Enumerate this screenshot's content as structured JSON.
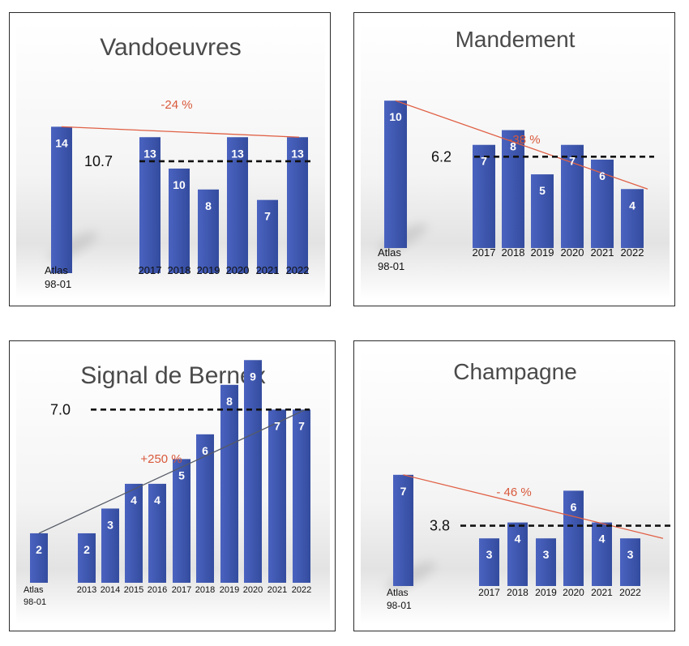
{
  "colors": {
    "bar": "#4a63c0",
    "bar_dark": "#344c9e",
    "trend_down": "#e06045",
    "trend_up": "#555a66",
    "avg": "#111111"
  },
  "chart_data": [
    {
      "type": "bar",
      "title": "Vandoeuvres",
      "categories": [
        "Atlas\n98-01",
        "2017",
        "2018",
        "2019",
        "2020",
        "2021",
        "2022"
      ],
      "values": [
        14,
        13,
        10,
        8,
        13,
        7,
        13
      ],
      "data_labels": [
        "14",
        "13",
        "10",
        "8",
        "13",
        "7",
        "13"
      ],
      "average": {
        "value": 10.7,
        "label": "10.7"
      },
      "change": {
        "label": "-24 %",
        "direction": "down"
      },
      "ylim": [
        0,
        15.5
      ]
    },
    {
      "type": "bar",
      "title": "Mandement",
      "categories": [
        "Atlas\n98-01",
        "2017",
        "2018",
        "2019",
        "2020",
        "2021",
        "2022"
      ],
      "values": [
        10,
        7,
        8,
        5,
        7,
        6,
        4
      ],
      "data_labels": [
        "10",
        "7",
        "8",
        "5",
        "7",
        "6",
        "4"
      ],
      "average": {
        "value": 6.2,
        "label": "6.2"
      },
      "change": {
        "label": "-38 %",
        "direction": "down"
      },
      "ylim": [
        0,
        11
      ]
    },
    {
      "type": "bar",
      "title": "Signal de Bernex",
      "categories": [
        "Atlas\n98-01",
        "2013",
        "2014",
        "2015",
        "2016",
        "2017",
        "2018",
        "2019",
        "2020",
        "2021",
        "2022"
      ],
      "values": [
        2,
        2,
        3,
        4,
        4,
        5,
        6,
        8,
        9,
        7,
        7
      ],
      "data_labels": [
        "2",
        "2",
        "3",
        "4",
        "4",
        "5",
        "6",
        "8",
        "9",
        "7",
        "7"
      ],
      "average": {
        "value": 7.0,
        "label": "7.0"
      },
      "change": {
        "label": "+250 %",
        "direction": "up"
      },
      "ylim": [
        0,
        9.5
      ]
    },
    {
      "type": "bar",
      "title": "Champagne",
      "categories": [
        "Atlas\n98-01",
        "2017",
        "2018",
        "2019",
        "2020",
        "2021",
        "2022"
      ],
      "values": [
        7,
        3,
        4,
        3,
        6,
        4,
        3
      ],
      "data_labels": [
        "7",
        "3",
        "4",
        "3",
        "6",
        "4",
        "3"
      ],
      "average": {
        "value": 3.8,
        "label": "3.8"
      },
      "change": {
        "label": "- 46 %",
        "direction": "down"
      },
      "ylim": [
        0,
        7.5
      ]
    }
  ]
}
